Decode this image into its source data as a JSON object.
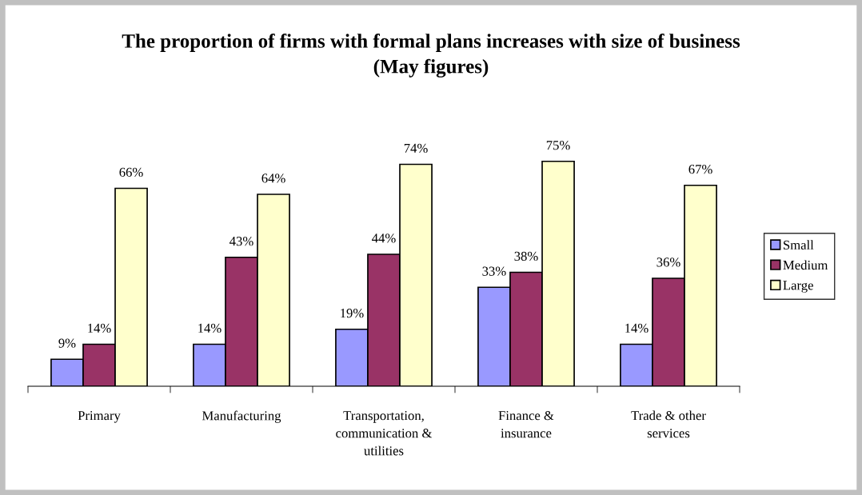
{
  "chart_data": {
    "type": "bar",
    "title": "The proportion of firms with formal plans increases with size of business\n(May figures)",
    "categories": [
      "Primary",
      "Manufacturing",
      "Transportation,\ncommunication &\nutilities",
      "Finance &\ninsurance",
      "Trade & other\nservices"
    ],
    "series": [
      {
        "name": "Small",
        "color": "#9999ff",
        "values": [
          9,
          14,
          19,
          33,
          14
        ],
        "value_labels": [
          "9%",
          "14%",
          "19%",
          "33%",
          "14%"
        ]
      },
      {
        "name": "Medium",
        "color": "#993366",
        "values": [
          14,
          43,
          44,
          38,
          36
        ],
        "value_labels": [
          "14%",
          "43%",
          "44%",
          "38%",
          "36%"
        ]
      },
      {
        "name": "Large",
        "color": "#ffffcc",
        "values": [
          66,
          64,
          74,
          75,
          67
        ],
        "value_labels": [
          "66%",
          "64%",
          "74%",
          "75%",
          "67%"
        ]
      }
    ],
    "legend": "right",
    "grid": false
  }
}
